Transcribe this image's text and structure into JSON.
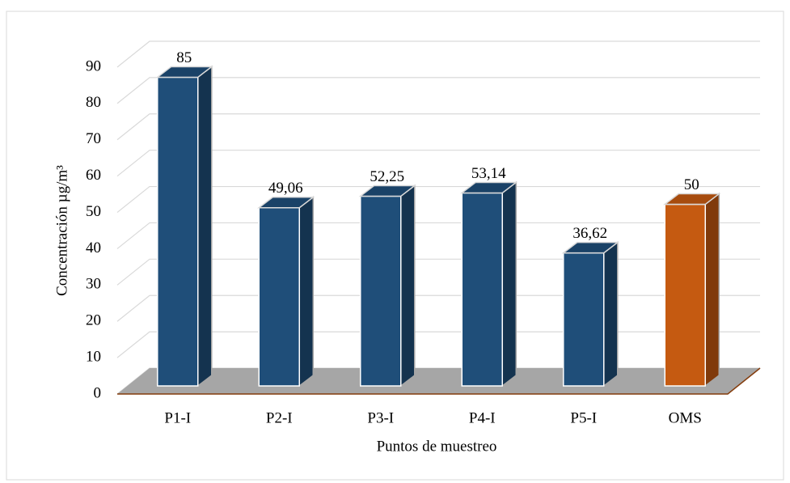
{
  "chart_data": {
    "type": "bar3d",
    "y_label": "Concentración µg/m³",
    "x_label": "Puntos de muestreo",
    "categories": [
      "P1-I",
      "P2-I",
      "P3-I",
      "P4-I",
      "P5-I",
      "OMS"
    ],
    "values": [
      85,
      49.06,
      52.25,
      53.14,
      36.62,
      50
    ],
    "value_labels": [
      "85",
      "49,06",
      "52,25",
      "53,14",
      "36,62",
      "50"
    ],
    "colors": [
      "#1f4e79",
      "#1f4e79",
      "#1f4e79",
      "#1f4e79",
      "#1f4e79",
      "#c55a11"
    ],
    "ylim": [
      0,
      90
    ],
    "yticks": [
      0,
      10,
      20,
      30,
      40,
      50,
      60,
      70,
      80,
      90
    ],
    "grid": true
  }
}
